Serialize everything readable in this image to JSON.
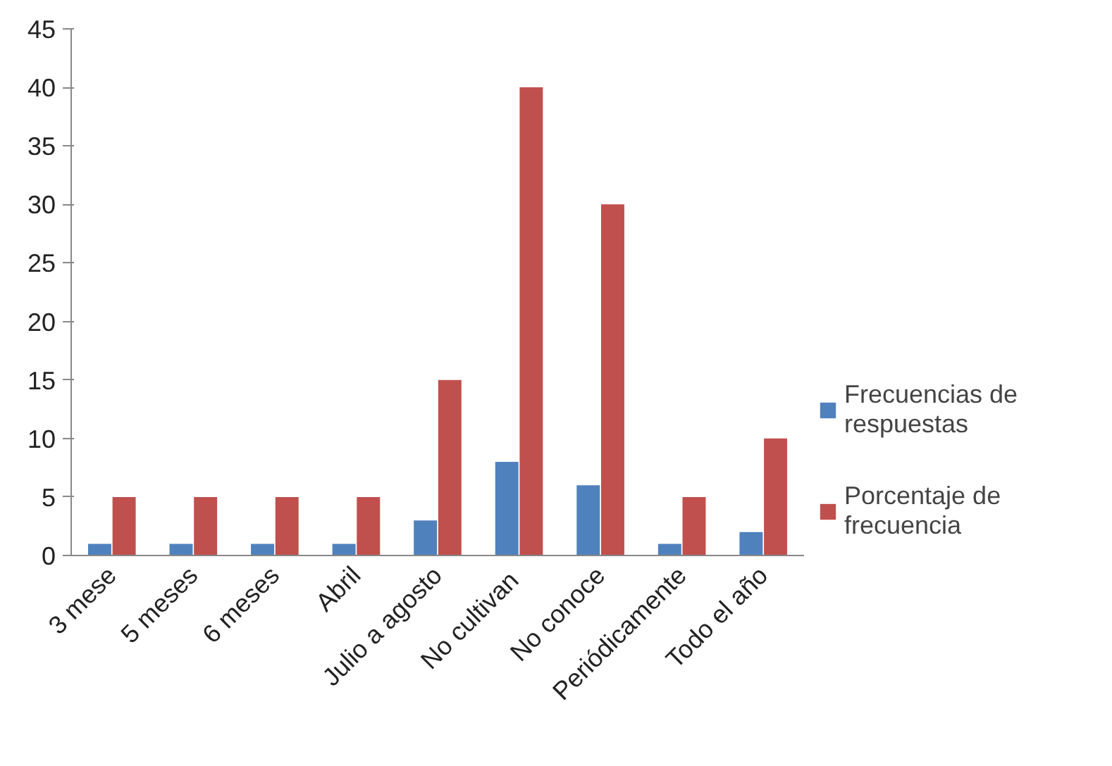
{
  "chart_data": {
    "type": "bar",
    "categories": [
      "3 mese",
      "5 meses",
      "6 meses",
      "Abril",
      "Julio a agosto",
      "No  cultivan",
      "No conoce",
      "Periódicamente",
      "Todo el año"
    ],
    "series": [
      {
        "name": "Frecuencias de respuestas",
        "color": "#4f81bd",
        "values": [
          1,
          1,
          1,
          1,
          3,
          8,
          6,
          1,
          2
        ]
      },
      {
        "name": "Porcentaje de frecuencia",
        "color": "#c0504d",
        "values": [
          5,
          5,
          5,
          5,
          15,
          40,
          30,
          5,
          10
        ]
      }
    ],
    "ylim": [
      0,
      45
    ],
    "yticks": [
      0,
      5,
      10,
      15,
      20,
      25,
      30,
      35,
      40,
      45
    ],
    "grid": false,
    "legend": "right"
  }
}
